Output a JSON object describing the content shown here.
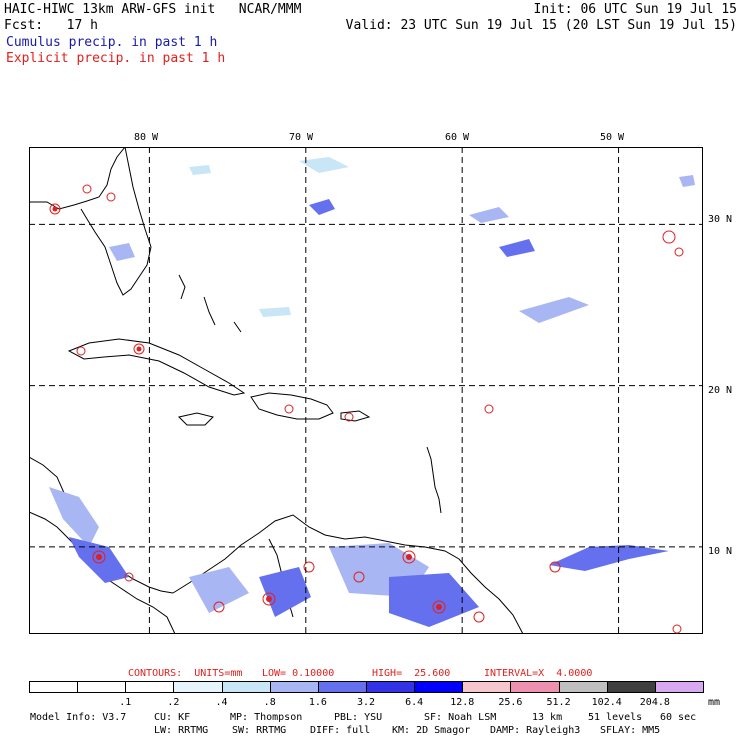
{
  "header": {
    "line1_left": "HAIC-HIWC 13km ARW-GFS init   NCAR/MMM",
    "line1_right": "Init: 06 UTC Sun 19 Jul 15",
    "line2_left": "Fcst:   17 h",
    "line2_right": "Valid: 23 UTC Sun 19 Jul 15 (20 LST Sun 19 Jul 15)",
    "cumulus_label": "Cumulus precip. in past 1 h",
    "explicit_label": "Explicit precip. in past 1 h",
    "cumulus_color": "#1a1aa8",
    "explicit_color": "#e0201e"
  },
  "map": {
    "lon_labels": [
      "80 W",
      "70 W",
      "60 W",
      "50 W"
    ],
    "lat_labels": [
      "30 N",
      "20 N",
      "10 N"
    ],
    "lon_values": [
      -80,
      -70,
      -60,
      -50
    ],
    "lat_values": [
      30,
      20,
      10
    ],
    "lon_range": [
      -87.7,
      -44.6
    ],
    "lat_range": [
      4.6,
      34.8
    ]
  },
  "contours": {
    "units": "CONTOURS:  UNITS=mm",
    "low": "LOW= 0.10000",
    "high": "HIGH=  25.600",
    "interval": "INTERVAL=X  4.0000"
  },
  "scale": {
    "labels": [
      ".1",
      ".2",
      ".4",
      ".8",
      "1.6",
      "3.2",
      "6.4",
      "12.8",
      "25.6",
      "51.2",
      "102.4",
      "204.8"
    ],
    "unit": "mm",
    "colors": [
      "#ffffff",
      "#ffffff",
      "#ffffff",
      "#e6f4fb",
      "#c8e6f6",
      "#a9b6f4",
      "#6470ee",
      "#3232e6",
      "#0000ff",
      "#f6c6cf",
      "#ee90b0",
      "#bfbfbf",
      "#3f3f3f",
      "#d8a8f0"
    ]
  },
  "footer": {
    "model_info": "Model Info: V3.7",
    "cu": "CU: KF",
    "mp": "MP: Thompson",
    "pbl": "PBL: YSU",
    "sf": "SF: Noah LSM",
    "res": "13 km",
    "levels": "51 levels",
    "dt": "60 sec",
    "lw": "LW: RRTMG",
    "sw": "SW: RRTMG",
    "diff": "DIFF: full",
    "km": "KM: 2D Smagor",
    "damp": "DAMP: Rayleigh3",
    "sflay": "SFLAY: MM5"
  }
}
